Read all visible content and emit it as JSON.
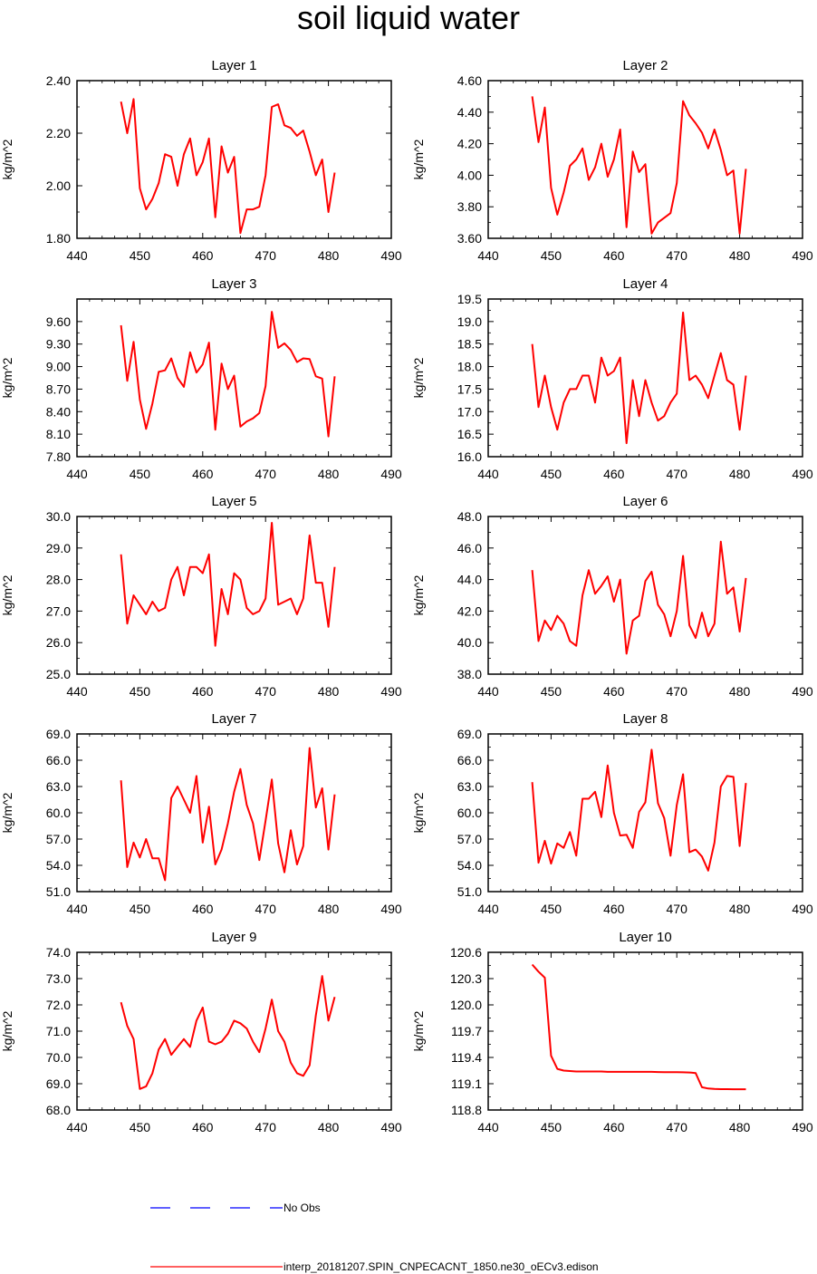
{
  "title": "soil liquid water",
  "colors": {
    "model": "#ff0000",
    "obs": "#0000ff"
  },
  "legend": {
    "obs_label": "No Obs",
    "model_label": "interp_20181207.SPIN_CNPECACNT_1850.ne30_oECv3.edison"
  },
  "chart_data": [
    {
      "type": "line",
      "title": "Layer 1",
      "ylabel": "kg/m^2",
      "xlabel": "",
      "xlim": [
        440,
        490
      ],
      "xticks": [
        440,
        450,
        460,
        470,
        480,
        490
      ],
      "ylim": [
        1.8,
        2.4
      ],
      "yticks": [
        "1.80",
        "2.00",
        "2.20",
        "2.40"
      ],
      "x": [
        447,
        448,
        449,
        450,
        451,
        452,
        453,
        454,
        455,
        456,
        457,
        458,
        459,
        460,
        461,
        462,
        463,
        464,
        465,
        466,
        467,
        468,
        469,
        470,
        471,
        472,
        473,
        474,
        475,
        476,
        477,
        478,
        479,
        480,
        481
      ],
      "values": [
        2.32,
        2.2,
        2.33,
        1.99,
        1.91,
        1.95,
        2.01,
        2.12,
        2.11,
        2.0,
        2.12,
        2.18,
        2.04,
        2.09,
        2.18,
        1.88,
        2.15,
        2.05,
        2.11,
        1.82,
        1.91,
        1.91,
        1.92,
        2.04,
        2.3,
        2.31,
        2.23,
        2.22,
        2.19,
        2.21,
        2.13,
        2.04,
        2.1,
        1.9,
        2.05
      ]
    },
    {
      "type": "line",
      "title": "Layer 2",
      "ylabel": "kg/m^2",
      "xlabel": "",
      "xlim": [
        440,
        490
      ],
      "xticks": [
        440,
        450,
        460,
        470,
        480,
        490
      ],
      "ylim": [
        3.6,
        4.6
      ],
      "yticks": [
        "3.60",
        "3.80",
        "4.00",
        "4.20",
        "4.40",
        "4.60"
      ],
      "x": [
        447,
        448,
        449,
        450,
        451,
        452,
        453,
        454,
        455,
        456,
        457,
        458,
        459,
        460,
        461,
        462,
        463,
        464,
        465,
        466,
        467,
        468,
        469,
        470,
        471,
        472,
        473,
        474,
        475,
        476,
        477,
        478,
        479,
        480,
        481
      ],
      "values": [
        4.5,
        4.21,
        4.43,
        3.92,
        3.75,
        3.89,
        4.06,
        4.1,
        4.17,
        3.97,
        4.05,
        4.2,
        3.99,
        4.1,
        4.29,
        3.67,
        4.15,
        4.02,
        4.07,
        3.63,
        3.7,
        3.73,
        3.76,
        3.95,
        4.47,
        4.38,
        4.33,
        4.27,
        4.17,
        4.29,
        4.16,
        4.0,
        4.03,
        3.63,
        4.04
      ]
    },
    {
      "type": "line",
      "title": "Layer 3",
      "ylabel": "kg/m^2",
      "xlabel": "",
      "xlim": [
        440,
        490
      ],
      "xticks": [
        440,
        450,
        460,
        470,
        480,
        490
      ],
      "ylim": [
        7.8,
        9.9
      ],
      "yticks": [
        "7.80",
        "8.10",
        "8.40",
        "8.70",
        "9.00",
        "9.30",
        "9.60"
      ],
      "x": [
        447,
        448,
        449,
        450,
        451,
        452,
        453,
        454,
        455,
        456,
        457,
        458,
        459,
        460,
        461,
        462,
        463,
        464,
        465,
        466,
        467,
        468,
        469,
        470,
        471,
        472,
        473,
        474,
        475,
        476,
        477,
        478,
        479,
        480,
        481
      ],
      "values": [
        9.55,
        8.81,
        9.33,
        8.56,
        8.17,
        8.51,
        8.93,
        8.95,
        9.11,
        8.85,
        8.73,
        9.19,
        8.92,
        9.03,
        9.32,
        8.16,
        9.04,
        8.7,
        8.88,
        8.2,
        8.27,
        8.31,
        8.38,
        8.74,
        9.73,
        9.25,
        9.31,
        9.22,
        9.06,
        9.11,
        9.1,
        8.87,
        8.84,
        8.07,
        8.87
      ]
    },
    {
      "type": "line",
      "title": "Layer 4",
      "ylabel": "kg/m^2",
      "xlabel": "",
      "xlim": [
        440,
        490
      ],
      "xticks": [
        440,
        450,
        460,
        470,
        480,
        490
      ],
      "ylim": [
        16.0,
        19.5
      ],
      "yticks": [
        "16.0",
        "16.5",
        "17.0",
        "17.5",
        "18.0",
        "18.5",
        "19.0",
        "19.5"
      ],
      "x": [
        447,
        448,
        449,
        450,
        451,
        452,
        453,
        454,
        455,
        456,
        457,
        458,
        459,
        460,
        461,
        462,
        463,
        464,
        465,
        466,
        467,
        468,
        469,
        470,
        471,
        472,
        473,
        474,
        475,
        476,
        477,
        478,
        479,
        480,
        481
      ],
      "values": [
        18.5,
        17.1,
        17.8,
        17.1,
        16.6,
        17.2,
        17.5,
        17.5,
        17.8,
        17.8,
        17.2,
        18.2,
        17.8,
        17.9,
        18.2,
        16.3,
        17.7,
        16.9,
        17.7,
        17.2,
        16.8,
        16.9,
        17.2,
        17.4,
        19.2,
        17.7,
        17.8,
        17.6,
        17.3,
        17.8,
        18.3,
        17.7,
        17.6,
        16.6,
        17.8
      ]
    },
    {
      "type": "line",
      "title": "Layer 5",
      "ylabel": "kg/m^2",
      "xlabel": "",
      "xlim": [
        440,
        490
      ],
      "xticks": [
        440,
        450,
        460,
        470,
        480,
        490
      ],
      "ylim": [
        25.0,
        30.0
      ],
      "yticks": [
        "25.0",
        "26.0",
        "27.0",
        "28.0",
        "29.0",
        "30.0"
      ],
      "x": [
        447,
        448,
        449,
        450,
        451,
        452,
        453,
        454,
        455,
        456,
        457,
        458,
        459,
        460,
        461,
        462,
        463,
        464,
        465,
        466,
        467,
        468,
        469,
        470,
        471,
        472,
        473,
        474,
        475,
        476,
        477,
        478,
        479,
        480,
        481
      ],
      "values": [
        28.8,
        26.6,
        27.5,
        27.2,
        26.9,
        27.3,
        27.0,
        27.1,
        28.0,
        28.4,
        27.5,
        28.4,
        28.4,
        28.2,
        28.8,
        25.9,
        27.7,
        26.9,
        28.2,
        28.0,
        27.1,
        26.9,
        27.0,
        27.4,
        29.8,
        27.2,
        27.3,
        27.4,
        26.9,
        27.4,
        29.4,
        27.9,
        27.9,
        26.5,
        28.4
      ]
    },
    {
      "type": "line",
      "title": "Layer 6",
      "ylabel": "kg/m^2",
      "xlabel": "",
      "xlim": [
        440,
        490
      ],
      "xticks": [
        440,
        450,
        460,
        470,
        480,
        490
      ],
      "ylim": [
        38.0,
        48.0
      ],
      "yticks": [
        "38.0",
        "40.0",
        "42.0",
        "44.0",
        "46.0",
        "48.0"
      ],
      "x": [
        447,
        448,
        449,
        450,
        451,
        452,
        453,
        454,
        455,
        456,
        457,
        458,
        459,
        460,
        461,
        462,
        463,
        464,
        465,
        466,
        467,
        468,
        469,
        470,
        471,
        472,
        473,
        474,
        475,
        476,
        477,
        478,
        479,
        480,
        481
      ],
      "values": [
        44.6,
        40.1,
        41.4,
        40.8,
        41.7,
        41.2,
        40.1,
        39.8,
        43.0,
        44.6,
        43.1,
        43.6,
        44.2,
        42.6,
        44.0,
        39.3,
        41.4,
        41.7,
        43.9,
        44.5,
        42.4,
        41.8,
        40.4,
        42.0,
        45.5,
        41.1,
        40.3,
        41.9,
        40.4,
        41.2,
        46.4,
        43.1,
        43.5,
        40.7,
        44.1
      ]
    },
    {
      "type": "line",
      "title": "Layer 7",
      "ylabel": "kg/m^2",
      "xlabel": "",
      "xlim": [
        440,
        490
      ],
      "xticks": [
        440,
        450,
        460,
        470,
        480,
        490
      ],
      "ylim": [
        51.0,
        69.0
      ],
      "yticks": [
        "51.0",
        "54.0",
        "57.0",
        "60.0",
        "63.0",
        "66.0",
        "69.0"
      ],
      "x": [
        447,
        448,
        449,
        450,
        451,
        452,
        453,
        454,
        455,
        456,
        457,
        458,
        459,
        460,
        461,
        462,
        463,
        464,
        465,
        466,
        467,
        468,
        469,
        470,
        471,
        472,
        473,
        474,
        475,
        476,
        477,
        478,
        479,
        480,
        481
      ],
      "values": [
        63.7,
        53.8,
        56.6,
        54.9,
        57.0,
        54.8,
        54.8,
        52.3,
        61.7,
        63.0,
        61.5,
        60.0,
        64.2,
        56.6,
        60.7,
        54.1,
        55.8,
        58.8,
        62.4,
        65.0,
        60.9,
        58.8,
        54.6,
        59.1,
        63.8,
        56.5,
        53.2,
        58.0,
        54.1,
        56.2,
        67.4,
        60.6,
        62.8,
        55.8,
        62.1
      ]
    },
    {
      "type": "line",
      "title": "Layer 8",
      "ylabel": "kg/m^2",
      "xlabel": "",
      "xlim": [
        440,
        490
      ],
      "xticks": [
        440,
        450,
        460,
        470,
        480,
        490
      ],
      "ylim": [
        51.0,
        69.0
      ],
      "yticks": [
        "51.0",
        "54.0",
        "57.0",
        "60.0",
        "63.0",
        "66.0",
        "69.0"
      ],
      "x": [
        447,
        448,
        449,
        450,
        451,
        452,
        453,
        454,
        455,
        456,
        457,
        458,
        459,
        460,
        461,
        462,
        463,
        464,
        465,
        466,
        467,
        468,
        469,
        470,
        471,
        472,
        473,
        474,
        475,
        476,
        477,
        478,
        479,
        480,
        481
      ],
      "values": [
        63.5,
        54.3,
        56.8,
        54.2,
        56.5,
        56.0,
        57.8,
        55.1,
        61.6,
        61.6,
        62.4,
        59.5,
        65.4,
        60.0,
        57.4,
        57.5,
        56.0,
        60.1,
        61.2,
        67.2,
        61.1,
        59.4,
        55.1,
        60.9,
        64.4,
        55.5,
        55.8,
        55.0,
        53.4,
        56.6,
        63.0,
        64.2,
        64.1,
        56.2,
        63.4
      ]
    },
    {
      "type": "line",
      "title": "Layer 9",
      "ylabel": "kg/m^2",
      "xlabel": "",
      "xlim": [
        440,
        490
      ],
      "xticks": [
        440,
        450,
        460,
        470,
        480,
        490
      ],
      "ylim": [
        68.0,
        74.0
      ],
      "yticks": [
        "68.0",
        "69.0",
        "70.0",
        "71.0",
        "72.0",
        "73.0",
        "74.0"
      ],
      "x": [
        447,
        448,
        449,
        450,
        451,
        452,
        453,
        454,
        455,
        456,
        457,
        458,
        459,
        460,
        461,
        462,
        463,
        464,
        465,
        466,
        467,
        468,
        469,
        470,
        471,
        472,
        473,
        474,
        475,
        476,
        477,
        478,
        479,
        480,
        481
      ],
      "values": [
        72.1,
        71.2,
        70.7,
        68.8,
        68.9,
        69.4,
        70.3,
        70.7,
        70.1,
        70.4,
        70.7,
        70.4,
        71.4,
        71.9,
        70.6,
        70.5,
        70.6,
        70.9,
        71.4,
        71.3,
        71.1,
        70.6,
        70.2,
        71.1,
        72.2,
        71.0,
        70.6,
        69.8,
        69.4,
        69.3,
        69.7,
        71.6,
        73.1,
        71.4,
        72.3
      ]
    },
    {
      "type": "line",
      "title": "Layer 10",
      "ylabel": "kg/m^2",
      "xlabel": "",
      "xlim": [
        440,
        490
      ],
      "xticks": [
        440,
        450,
        460,
        470,
        480,
        490
      ],
      "ylim": [
        118.8,
        120.6
      ],
      "yticks": [
        "118.8",
        "119.1",
        "119.4",
        "119.7",
        "120.0",
        "120.3",
        "120.6"
      ],
      "x": [
        447,
        448,
        449,
        450,
        451,
        452,
        453,
        454,
        455,
        456,
        457,
        458,
        459,
        460,
        461,
        462,
        463,
        464,
        465,
        466,
        467,
        468,
        469,
        470,
        471,
        472,
        473,
        474,
        475,
        476,
        477,
        478,
        479,
        480,
        481
      ],
      "values": [
        120.46,
        120.38,
        120.31,
        119.42,
        119.27,
        119.25,
        119.245,
        119.24,
        119.24,
        119.24,
        119.24,
        119.24,
        119.235,
        119.235,
        119.235,
        119.235,
        119.235,
        119.235,
        119.235,
        119.235,
        119.233,
        119.232,
        119.232,
        119.232,
        119.23,
        119.228,
        119.222,
        119.06,
        119.045,
        119.04,
        119.038,
        119.038,
        119.037,
        119.037,
        119.037
      ]
    }
  ]
}
